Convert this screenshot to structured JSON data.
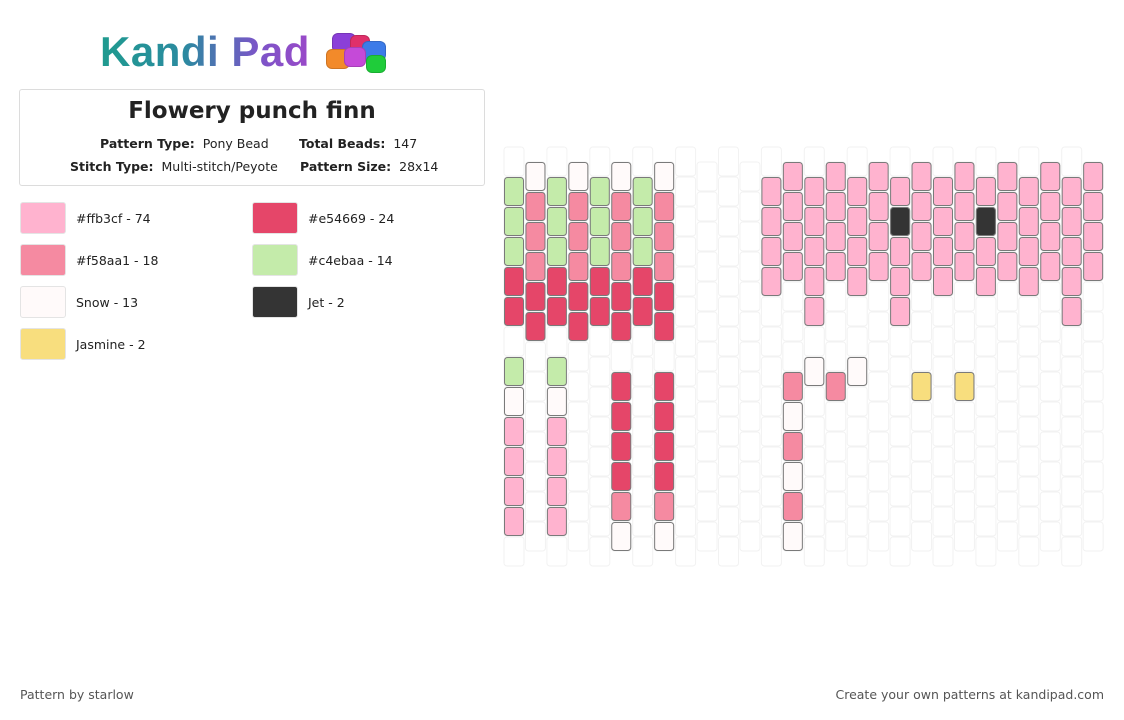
{
  "brand": {
    "name": "Kandi Pad"
  },
  "pattern": {
    "title": "Flowery punch finn",
    "pattern_type_label": "Pattern Type:",
    "pattern_type": "Pony Bead",
    "total_beads_label": "Total Beads:",
    "total_beads": "147",
    "stitch_type_label": "Stitch Type:",
    "stitch_type": "Multi-stitch/Peyote",
    "pattern_size_label": "Pattern Size:",
    "pattern_size": "28x14"
  },
  "legend": [
    {
      "label": "#ffb3cf - 74",
      "color": "#ffb3cf"
    },
    {
      "label": "#e54669 - 24",
      "color": "#e54669"
    },
    {
      "label": "#f58aa1 - 18",
      "color": "#f58aa1"
    },
    {
      "label": "#c4ebaa - 14",
      "color": "#c4ebaa"
    },
    {
      "label": "Snow - 13",
      "color": "#fffafa"
    },
    {
      "label": "Jet - 2",
      "color": "#343434"
    },
    {
      "label": "Jasmine - 2",
      "color": "#f8de7e"
    }
  ],
  "footer": {
    "credit": "Pattern by starlow",
    "cta": "Create your own patterns at kandipad.com"
  }
}
